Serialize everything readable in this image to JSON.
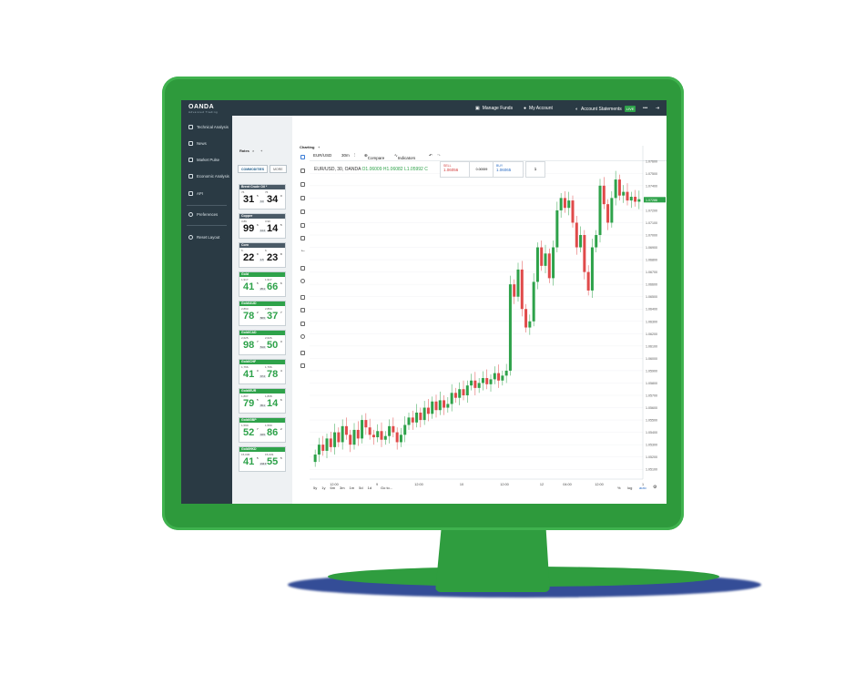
{
  "topbar": {
    "logo": "OANDA",
    "logo_sub": "Advanced Trading",
    "manage_funds": "Manage Funds",
    "my_account": "My Account",
    "account_statements": "Account Statements",
    "live": "LIVE",
    "more": "•••"
  },
  "sidebar": {
    "items": [
      {
        "label": "Technical Analysis",
        "icon": "chart-icon"
      },
      {
        "label": "News",
        "icon": "news-icon"
      },
      {
        "label": "Market Pulse",
        "icon": "pulse-icon"
      },
      {
        "label": "Economic Analysis",
        "icon": "analysis-icon"
      },
      {
        "label": "API",
        "icon": "api-icon"
      },
      {
        "label": "Preferences",
        "icon": "gear-icon"
      },
      {
        "label": "Reset Layout",
        "icon": "reset-icon"
      }
    ]
  },
  "rates": {
    "tab": "Rates",
    "tab_close": "×",
    "tab_add": "+",
    "cat_active": "COMMODITIES",
    "cat_more": "MORE",
    "cards": [
      {
        "name": "Brent Crude Oil *",
        "color": "grey",
        "bid_small": "76",
        "ask_small": "76",
        "bid": "31",
        "ask": "34",
        "bid_sup": "5",
        "ask_sup": "0",
        "spread": "3.0"
      },
      {
        "name": "Copper",
        "color": "grey",
        "bid_small": "3.86",
        "ask_small": "3.90",
        "bid": "99",
        "ask": "14",
        "bid_sup": "6",
        "ask_sup": "5",
        "spread": "14.4"
      },
      {
        "name": "Corn",
        "color": "grey",
        "bid_small": "6.",
        "ask_small": "6.",
        "bid": "22",
        "ask": "23",
        "bid_sup": "8",
        "ask_sup": "8",
        "spread": "1.5"
      },
      {
        "name": "Gold",
        "color": "green",
        "bid_small": "1,917.",
        "ask_small": "1,917.",
        "bid": "41",
        "ask": "66",
        "bid_sup": "5",
        "ask_sup": "6",
        "spread": "25.1"
      },
      {
        "name": "Gold/AUD",
        "color": "green",
        "bid_small": "2,863.",
        "ask_small": "2,864.",
        "bid": "78",
        "ask": "37",
        "bid_sup": "2",
        "ask_sup": "7",
        "spread": "58.5"
      },
      {
        "name": "Gold/CAD",
        "color": "green",
        "bid_small": "2,625.",
        "ask_small": "2,626.",
        "bid": "98",
        "ask": "50",
        "bid_sup": "7",
        "ask_sup": "3",
        "spread": "51.6"
      },
      {
        "name": "Gold/CHF",
        "color": "green",
        "bid_small": "1,766.",
        "ask_small": "1,766.",
        "bid": "41",
        "ask": "78",
        "bid_sup": "0",
        "ask_sup": "4",
        "spread": "37.4"
      },
      {
        "name": "Gold/EUR",
        "color": "green",
        "bid_small": "1,807.",
        "ask_small": "1,808.",
        "bid": "79",
        "ask": "14",
        "bid_sup": "5",
        "ask_sup": "6",
        "spread": "35.1"
      },
      {
        "name": "Gold/GBP",
        "color": "green",
        "bid_small": "1,590.",
        "ask_small": "1,590.",
        "bid": "52",
        "ask": "86",
        "bid_sup": "7",
        "ask_sup": "2",
        "spread": "33.5"
      },
      {
        "name": "Gold/HKD",
        "color": "green",
        "bid_small": "15,036.",
        "ask_small": "15,033.",
        "bid": "41",
        "ask": "55",
        "bid_sup": "5",
        "ask_sup": "5",
        "spread": "214.0"
      }
    ]
  },
  "chart_panel": {
    "tab": "Charting",
    "tab_add": "+",
    "symbol": "EUR/USD",
    "interval": "30m",
    "compare": "Compare",
    "indicators": "Indicators",
    "legend_title": "EUR/USD, 30, OANDA",
    "legend_o": "O1.06009",
    "legend_h": "H1.06082",
    "legend_l": "L1.05992",
    "legend_c": "C",
    "sell_label": "SELL",
    "sell_price": "1.06056",
    "spread": "0.00009",
    "buy_label": "BUY",
    "buy_price": "1.06065",
    "qty": "1"
  },
  "chart_data": {
    "type": "candlestick",
    "title": "EUR/USD, 30, OANDA",
    "yticks": [
      "1.07600",
      "1.07500",
      "1.07400",
      "1.07300",
      "1.07200",
      "1.07100",
      "1.07000",
      "1.06900",
      "1.06800",
      "1.06700",
      "1.06600",
      "1.06500",
      "1.06400",
      "1.06300",
      "1.06200",
      "1.06100",
      "1.06000",
      "1.05900",
      "1.05800",
      "1.05700",
      "1.05600",
      "1.05500",
      "1.05400",
      "1.05300",
      "1.05200",
      "1.05100"
    ],
    "ylim": [
      1.0505,
      1.0765
    ],
    "last_price": "1.07286",
    "xticks": [
      "12:00",
      "9",
      "12:00",
      "10",
      "12:00",
      "12",
      "04:00",
      "12:00",
      "1"
    ],
    "close_values": [
      1.0522,
      1.053,
      1.0525,
      1.0535,
      1.0528,
      1.054,
      1.0532,
      1.0545,
      1.0538,
      1.053,
      1.0542,
      1.0535,
      1.055,
      1.0544,
      1.0538,
      1.0536,
      1.0541,
      1.0534,
      1.0537,
      1.0545,
      1.054,
      1.0532,
      1.0538,
      1.0546,
      1.0552,
      1.0548,
      1.0556,
      1.055,
      1.056,
      1.0555,
      1.0565,
      1.0558,
      1.0566,
      1.056,
      1.0563,
      1.0572,
      1.0568,
      1.0575,
      1.057,
      1.0578,
      1.0582,
      1.0576,
      1.058,
      1.0584,
      1.0579,
      1.0583,
      1.0588,
      1.0582,
      1.0586,
      1.059,
      1.066,
      1.065,
      1.0672,
      1.064,
      1.0625,
      1.063,
      1.0662,
      1.069,
      1.0675,
      1.0685,
      1.0665,
      1.069,
      1.072,
      1.073,
      1.0722,
      1.0728,
      1.071,
      1.069,
      1.07,
      1.067,
      1.0655,
      1.069,
      1.07,
      1.074,
      1.0725,
      1.071,
      1.073,
      1.0745,
      1.0732,
      1.0735,
      1.0728,
      1.0731,
      1.0727,
      1.0729
    ]
  },
  "timeframes": [
    "5y",
    "1y",
    "6m",
    "3m",
    "1m",
    "5d",
    "1d"
  ],
  "goto": "Go to...",
  "bottom_right": {
    "percent": "%",
    "log": "log",
    "auto": "auto"
  }
}
